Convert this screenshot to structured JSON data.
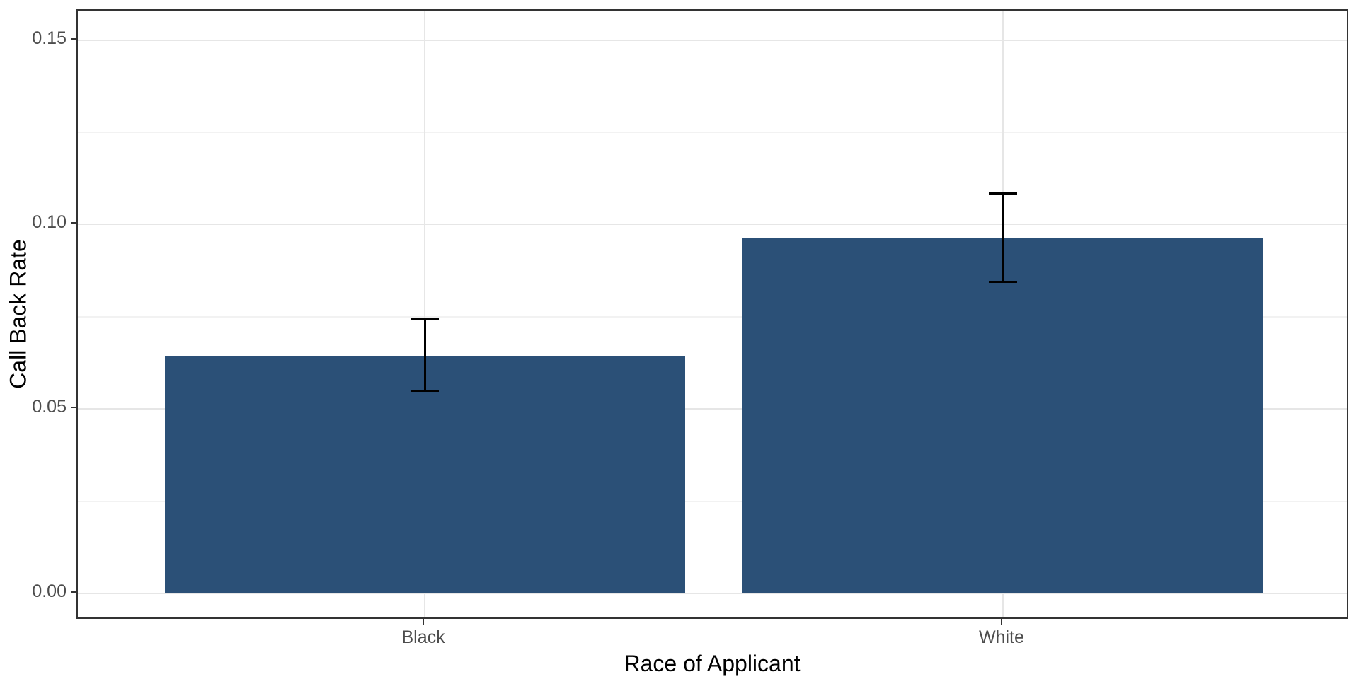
{
  "chart_data": {
    "type": "bar",
    "title": "",
    "xlabel": "Race of Applicant",
    "ylabel": "Call Back Rate",
    "categories": [
      "Black",
      "White"
    ],
    "values": [
      0.0645,
      0.0965
    ],
    "error_bars": [
      {
        "low": 0.055,
        "high": 0.0745
      },
      {
        "low": 0.0845,
        "high": 0.1085
      }
    ],
    "yticks": [
      0,
      0.05,
      0.1,
      0.15
    ],
    "ytick_labels": [
      "0.00",
      "0.05",
      "0.10",
      "0.15"
    ],
    "minor_yticks": [
      0.025,
      0.075,
      0.125
    ],
    "ylim": [
      -0.0073,
      0.158
    ],
    "grid": "horizontal major+minor, vertical major at category centers",
    "legend": "none"
  },
  "colors": {
    "bar_fill": "#2B5077",
    "panel_border": "#333333",
    "grid_major": "#E6E6E6",
    "grid_minor": "#F2F2F2",
    "tick_label": "#4D4D4D",
    "axis_title": "#000000",
    "error_bar": "#000000",
    "background": "#FFFFFF"
  }
}
